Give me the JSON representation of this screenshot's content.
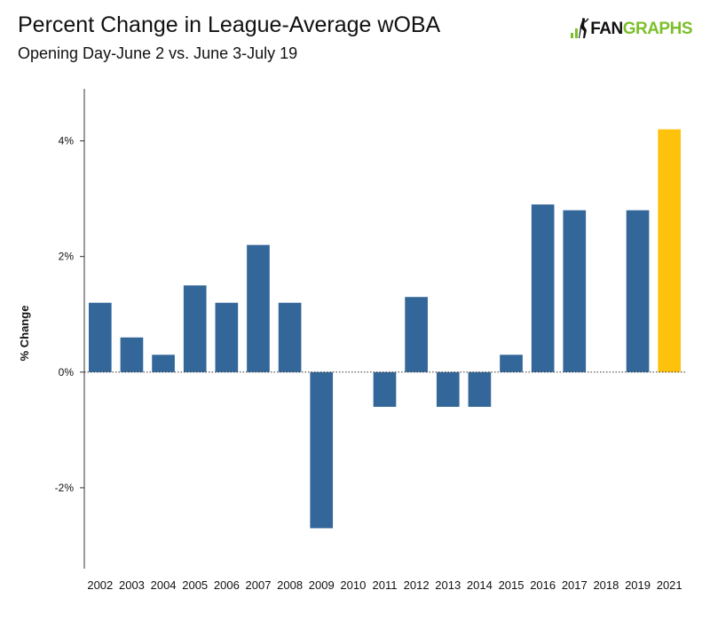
{
  "colors": {
    "bar": "#336699",
    "highlight": "#fec10c",
    "axis": "#333333",
    "brand_green": "#7cbf2b"
  },
  "logo": {
    "part1": "FAN",
    "part2": "GRAPHS"
  },
  "chart_data": {
    "type": "bar",
    "title": "Percent Change in League-Average wOBA",
    "subtitle": "Opening Day-June 2 vs. June 3-July 19",
    "xlabel": "",
    "ylabel": "% Change",
    "categories": [
      "2002",
      "2003",
      "2004",
      "2005",
      "2006",
      "2007",
      "2008",
      "2009",
      "2010",
      "2011",
      "2012",
      "2013",
      "2014",
      "2015",
      "2016",
      "2017",
      "2018",
      "2019",
      "2021"
    ],
    "values": [
      1.2,
      0.6,
      0.3,
      1.5,
      1.2,
      2.2,
      1.2,
      -2.7,
      0,
      -0.6,
      1.3,
      -0.6,
      -0.6,
      0.3,
      2.9,
      2.8,
      0,
      2.8,
      4.2
    ],
    "highlight_category": "2021",
    "y_ticks": [
      -2,
      0,
      2,
      4
    ],
    "y_tick_labels": [
      "-2%",
      "0%",
      "2%",
      "4%"
    ],
    "ylim": [
      -3.4,
      4.9
    ],
    "zero_line": "dotted",
    "grid": false,
    "legend": "none"
  }
}
